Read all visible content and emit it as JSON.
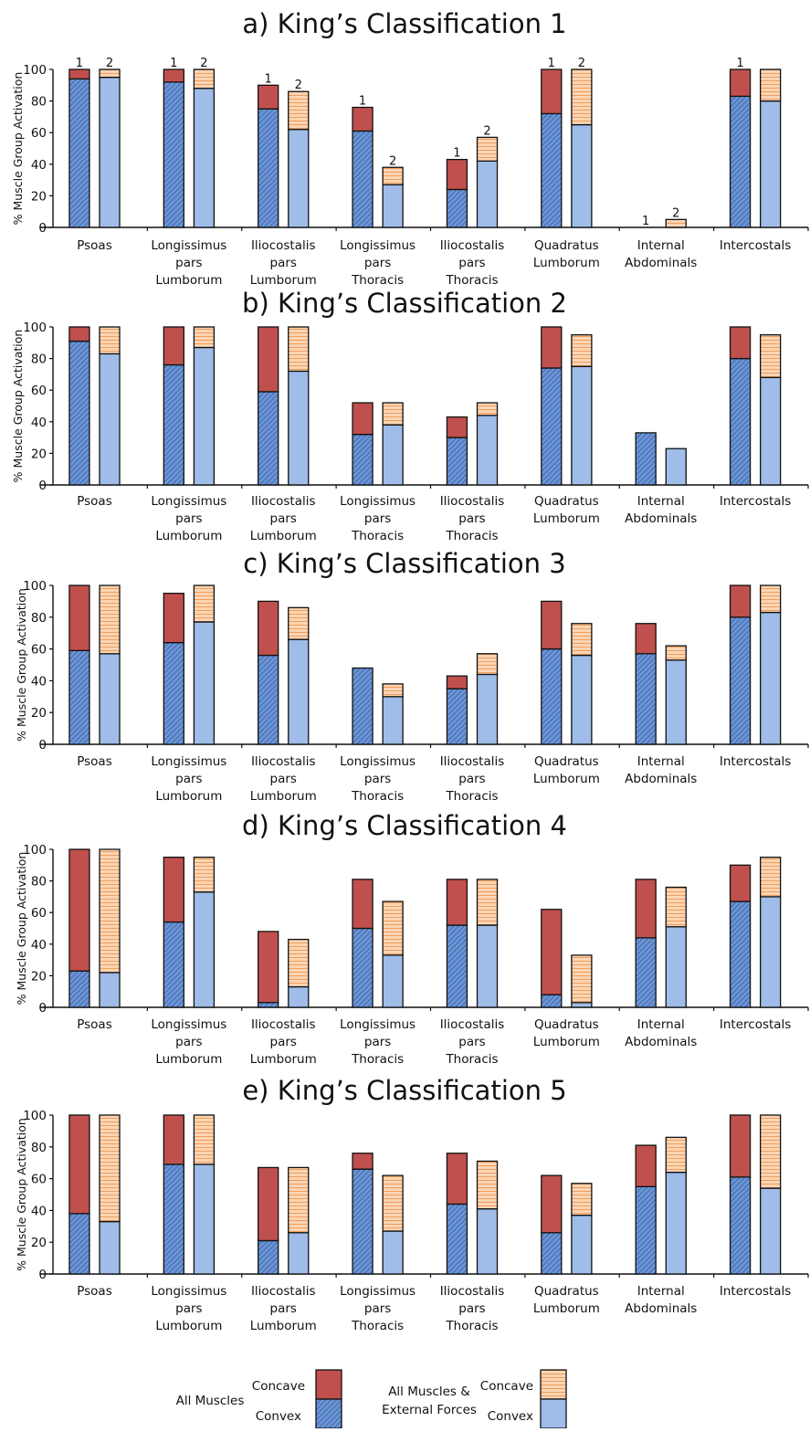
{
  "colors": {
    "concave_all": "#c0504d",
    "convex_all": "#6c95d3",
    "concave_ext": "#fbd5b5",
    "convex_ext": "#9fbde8",
    "hatch_all": "#2e55a5",
    "hatch_ext": "#ef9e5c"
  },
  "chart_data": [
    {
      "type": "bar",
      "title": "a) King’s Classification 1",
      "ylabel": "% Muscle Group Activation",
      "ylim": [
        0,
        100
      ],
      "yticks": [
        "0",
        "20",
        "40",
        "60",
        "80",
        "100"
      ],
      "categories": [
        "Psoas",
        "Longissimus pars Lumborum",
        "Iliocostalis pars Lumborum",
        "Longissimus pars Thoracis",
        "Iliocostalis pars Thoracis",
        "Quadratus Lumborum",
        "Internal Abdominals",
        "Intercostals"
      ],
      "series": [
        {
          "name": "All Muscles",
          "convex": [
            94,
            92,
            75,
            61,
            24,
            72,
            0,
            83
          ],
          "total": [
            100,
            100,
            90,
            76,
            43,
            100,
            0,
            100
          ]
        },
        {
          "name": "All Muscles & External Forces",
          "convex": [
            95,
            88,
            62,
            27,
            42,
            65,
            0,
            80
          ],
          "total": [
            100,
            100,
            86,
            38,
            57,
            100,
            5,
            100
          ]
        }
      ],
      "bar_labels": [
        [
          "1",
          "2"
        ],
        [
          "1",
          "2"
        ],
        [
          "1",
          "2"
        ],
        [
          "1",
          "2"
        ],
        [
          "1",
          "2"
        ],
        [
          "1",
          "2"
        ],
        [
          "1",
          "2"
        ],
        [
          "1",
          ""
        ]
      ]
    },
    {
      "type": "bar",
      "title": "b) King’s Classification 2",
      "ylabel": "% Muscle Group Activation",
      "ylim": [
        0,
        100
      ],
      "yticks": [
        "0",
        "20",
        "40",
        "60",
        "80",
        "100"
      ],
      "categories": [
        "Psoas",
        "Longissimus pars Lumborum",
        "Iliocostalis pars Lumborum",
        "Longissimus pars Thoracis",
        "Iliocostalis pars Thoracis",
        "Quadratus Lumborum",
        "Internal Abdominals",
        "Intercostals"
      ],
      "series": [
        {
          "name": "All Muscles",
          "convex": [
            91,
            76,
            59,
            32,
            30,
            74,
            33,
            80
          ],
          "total": [
            100,
            100,
            100,
            52,
            43,
            100,
            33,
            100
          ]
        },
        {
          "name": "All Muscles & External Forces",
          "convex": [
            83,
            87,
            72,
            38,
            44,
            75,
            23,
            68
          ],
          "total": [
            100,
            100,
            100,
            52,
            52,
            95,
            23,
            95
          ]
        }
      ]
    },
    {
      "type": "bar",
      "title": "c) King’s Classification 3",
      "ylabel": "% Muscle Group Activation",
      "ylim": [
        0,
        100
      ],
      "yticks": [
        "0",
        "20",
        "40",
        "60",
        "80",
        "100"
      ],
      "categories": [
        "Psoas",
        "Longissimus pars Lumborum",
        "Iliocostalis pars Lumborum",
        "Longissimus pars Thoracis",
        "Iliocostalis pars Thoracis",
        "Quadratus Lumborum",
        "Internal Abdominals",
        "Intercostals"
      ],
      "series": [
        {
          "name": "All Muscles",
          "convex": [
            59,
            64,
            56,
            48,
            35,
            60,
            57,
            80
          ],
          "total": [
            100,
            95,
            90,
            48,
            43,
            90,
            76,
            100
          ]
        },
        {
          "name": "All Muscles & External Forces",
          "convex": [
            57,
            77,
            66,
            30,
            44,
            56,
            53,
            83
          ],
          "total": [
            100,
            100,
            86,
            38,
            57,
            76,
            62,
            100
          ]
        }
      ]
    },
    {
      "type": "bar",
      "title": "d) King’s Classification 4",
      "ylabel": "% Muscle Group Activation",
      "ylim": [
        0,
        100
      ],
      "yticks": [
        "0",
        "20",
        "40",
        "60",
        "80",
        "100"
      ],
      "categories": [
        "Psoas",
        "Longissimus pars Lumborum",
        "Iliocostalis pars Lumborum",
        "Longissimus pars Thoracis",
        "Iliocostalis pars Thoracis",
        "Quadratus Lumborum",
        "Internal Abdominals",
        "Intercostals"
      ],
      "series": [
        {
          "name": "All Muscles",
          "convex": [
            23,
            54,
            3,
            50,
            52,
            8,
            44,
            67
          ],
          "total": [
            100,
            95,
            48,
            81,
            81,
            62,
            81,
            90
          ]
        },
        {
          "name": "All Muscles & External Forces",
          "convex": [
            22,
            73,
            13,
            33,
            52,
            3,
            51,
            70
          ],
          "total": [
            100,
            95,
            43,
            67,
            81,
            33,
            76,
            95
          ]
        }
      ]
    },
    {
      "type": "bar",
      "title": "e) King’s Classification 5",
      "ylabel": "% Muscle Group Activation",
      "ylim": [
        0,
        100
      ],
      "yticks": [
        "0",
        "20",
        "40",
        "60",
        "80",
        "100"
      ],
      "categories": [
        "Psoas",
        "Longissimus pars Lumborum",
        "Iliocostalis pars Lumborum",
        "Longissimus pars Thoracis",
        "Iliocostalis pars Thoracis",
        "Quadratus Lumborum",
        "Internal Abdominals",
        "Intercostals"
      ],
      "series": [
        {
          "name": "All Muscles",
          "convex": [
            38,
            69,
            21,
            66,
            44,
            26,
            55,
            61
          ],
          "total": [
            100,
            100,
            67,
            76,
            76,
            62,
            81,
            100
          ]
        },
        {
          "name": "All Muscles & External Forces",
          "convex": [
            33,
            69,
            26,
            27,
            41,
            37,
            64,
            54
          ],
          "total": [
            100,
            100,
            67,
            62,
            71,
            57,
            86,
            100
          ]
        }
      ]
    }
  ],
  "legend": {
    "group1": {
      "name": "All Muscles",
      "concave": "Concave",
      "convex": "Convex"
    },
    "group2": {
      "name": "All Muscles & External Forces",
      "name_lines": [
        "All Muscles &",
        "External Forces"
      ],
      "concave": "Concave",
      "convex": "Convex"
    }
  }
}
